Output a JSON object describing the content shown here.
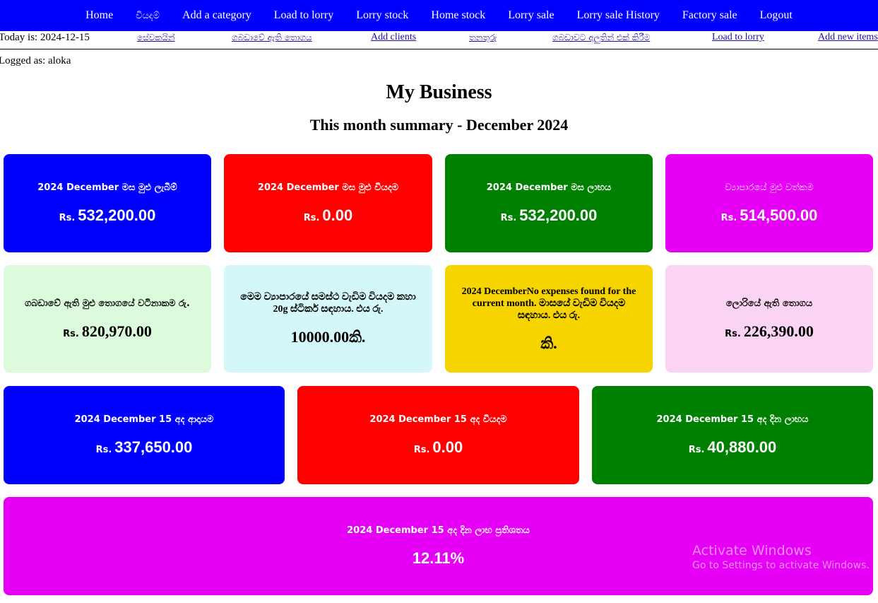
{
  "nav": {
    "items": [
      "Home",
      "වියදම්",
      "Add a category",
      "Load to lorry",
      "Lorry stock",
      "Home stock",
      "Lorry sale",
      "Lorry sale History",
      "Factory sale",
      "Logout"
    ]
  },
  "subbar": {
    "today": "Today is: 2024-12-15",
    "links": [
      "සේවකයින්",
      "ගබඩාවේ ඇති තොගය",
      "Add clients",
      "තනතුරු",
      "ගබඩාවට අලුතින් එක් කිරීම",
      "Load to lorry",
      "Add new items"
    ]
  },
  "user": {
    "logged_as": "Logged as: aloka"
  },
  "page": {
    "title": "My Business",
    "subtitle": "This month summary - December 2024"
  },
  "currency": "Rs.",
  "colors": {
    "nav_bg": "#0000ff",
    "blue": "#0000ff",
    "red": "#ff0000",
    "green": "#008000",
    "magenta": "#e600f5",
    "light_green": "#dcfadc",
    "light_cyan": "#d4f8fa",
    "yellow": "#f5d400",
    "light_pink": "#fad4f2"
  },
  "cards": {
    "month_income": {
      "label": "2024 December මස මුළු ලැබීම්",
      "amount": "532,200.00"
    },
    "month_expense": {
      "label": "2024 December මස මුළු වියදම",
      "amount": "0.00"
    },
    "month_profit": {
      "label": "2024 December මස ලාභය",
      "amount": "532,200.00"
    },
    "total_turnover": {
      "label": "ව්‍යාපාරයේ මුළු වත්කම",
      "amount": "514,500.00"
    },
    "stock_value": {
      "label": "ගබඩාවේ ඇති මුළු තොගයේ වටිනාකම රු.",
      "amount": "820,970.00"
    },
    "sticker_cost": {
      "label": "මෙම ව්‍යාපාරයේ සමස්ථ වැඩිම වියදම කහා 20g ස්ටිකර් සඳහාය. එය රු.",
      "amount": "10000.00කි."
    },
    "month_top_expense": {
      "label": "2024 DecemberNo expenses found for the current month. මාසයේ වැඩිම වියදම සඳහාය. එය රු.",
      "amount": "කි."
    },
    "lorry_stock": {
      "label": "ලොරියේ ඇති තොගය",
      "amount": "226,390.00"
    },
    "day_income": {
      "label": "2024 December 15 අද ආදායම",
      "amount": "337,650.00"
    },
    "day_expense": {
      "label": "2024 December 15 අද වියදම",
      "amount": "0.00"
    },
    "day_profit": {
      "label": "2024 December 15 අද දින ලාභය",
      "amount": "40,880.00"
    },
    "day_profit_pct": {
      "label": "2024 December 15 අද දින ලාභ ප්‍රතිශතය",
      "amount": "12.11%"
    }
  },
  "watermark": {
    "line1": "Activate Windows",
    "line2": "Go to Settings to activate Windows."
  }
}
